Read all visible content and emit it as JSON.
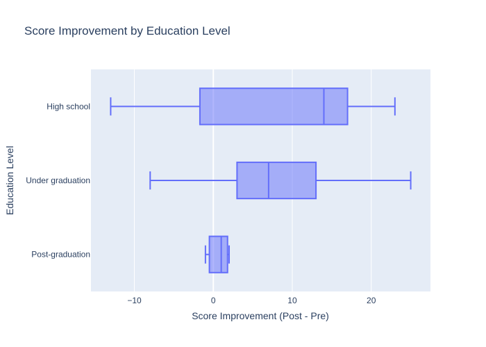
{
  "chart_data": {
    "type": "box",
    "orientation": "horizontal",
    "title": "Score Improvement by Education Level",
    "xlabel": "Score Improvement (Post - Pre)",
    "ylabel": "Education Level",
    "xlim": [
      -15.5,
      27.5
    ],
    "x_ticks": [
      -10,
      0,
      10,
      20
    ],
    "x_tick_labels": [
      "−10",
      "0",
      "10",
      "20"
    ],
    "grid": true,
    "colors": {
      "plot_bg": "#e5ecf6",
      "grid": "#ffffff",
      "box_line": "#636efa",
      "box_fill": "rgba(99,110,250,0.5)"
    },
    "categories": [
      "High school",
      "Under graduation",
      "Post-graduation"
    ],
    "boxes": [
      {
        "category": "High school",
        "min": -13,
        "q1": -1.7,
        "median": 14,
        "q3": 17,
        "max": 23
      },
      {
        "category": "Under graduation",
        "min": -8,
        "q1": 3,
        "median": 7,
        "q3": 13,
        "max": 25
      },
      {
        "category": "Post-graduation",
        "min": -1,
        "q1": -0.5,
        "median": 1,
        "q3": 1.8,
        "max": 2
      }
    ]
  }
}
